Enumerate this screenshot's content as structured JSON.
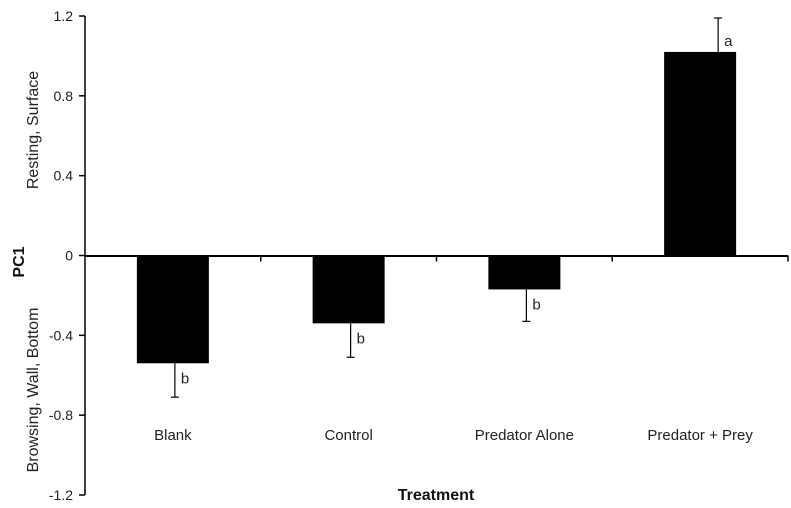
{
  "chart_data": {
    "type": "bar",
    "categories": [
      "Blank",
      "Control",
      "Predator Alone",
      "Predator + Prey"
    ],
    "values": [
      -0.54,
      -0.34,
      -0.17,
      1.02
    ],
    "error_bars": [
      {
        "direction": "down",
        "value": 0.17
      },
      {
        "direction": "down",
        "value": 0.17
      },
      {
        "direction": "down",
        "value": 0.16
      },
      {
        "direction": "up",
        "value": 0.17
      }
    ],
    "significance_labels": [
      "b",
      "b",
      "b",
      "a"
    ],
    "xlabel": "Treatment",
    "ylabel": "PC1",
    "ylabel_upper": "Resting, Surface",
    "ylabel_lower": "Browsing, Wall, Bottom",
    "ylim": [
      -1.2,
      1.2
    ],
    "yticks": [
      -1.2,
      -0.8,
      -0.4,
      0,
      0.4,
      0.8,
      1.2
    ],
    "ytick_labels": [
      "-1.2",
      "-0.8",
      "-0.4",
      "0",
      "0.4",
      "0.8",
      "1.2"
    ],
    "grid": false,
    "bar_color": "#000000"
  }
}
